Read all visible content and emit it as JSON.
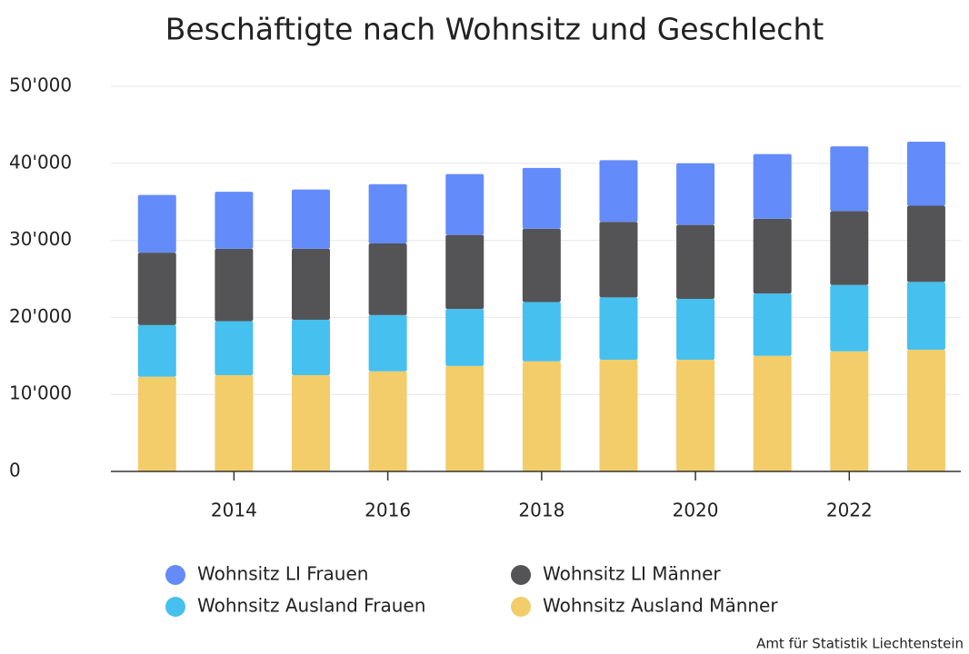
{
  "chart_data": {
    "type": "stacked_bar",
    "title": "Beschäftigte nach Wohnsitz und Geschlecht",
    "source": "Amt für Statistik Liechtenstein",
    "x": [
      2013,
      2014,
      2015,
      2016,
      2017,
      2018,
      2019,
      2020,
      2021,
      2022,
      2023
    ],
    "xlim": [
      2012.4,
      2023.45
    ],
    "xticks": [
      2014,
      2016,
      2018,
      2020,
      2022
    ],
    "ylim": [
      0,
      50000
    ],
    "yticks": [
      0,
      {
        "value": 10000,
        "label": "10'000"
      },
      {
        "value": 20000,
        "label": "20'000"
      },
      {
        "value": 30000,
        "label": "30'000"
      },
      {
        "value": 40000,
        "label": "40'000"
      },
      {
        "value": 50000,
        "label": "50'000"
      }
    ],
    "grid": true,
    "series": [
      {
        "name": "Wohnsitz LI Frauen",
        "color": "#648bfa",
        "values": [
          7500,
          7400,
          7700,
          7700,
          7900,
          7900,
          8000,
          8000,
          8400,
          8400,
          8300
        ]
      },
      {
        "name": "Wohnsitz LI Männer",
        "color": "#545457",
        "values": [
          9400,
          9400,
          9200,
          9300,
          9600,
          9500,
          9800,
          9600,
          9700,
          9600,
          9900
        ]
      },
      {
        "name": "Wohnsitz Ausland Frauen",
        "color": "#46c0ef",
        "values": [
          6700,
          7000,
          7200,
          7300,
          7400,
          7700,
          8100,
          7900,
          8100,
          8600,
          8800
        ]
      },
      {
        "name": "Wohnsitz Ausland Männer",
        "color": "#f2cd6a",
        "values": [
          12300,
          12500,
          12500,
          13000,
          13700,
          14300,
          14500,
          14500,
          15000,
          15600,
          15800
        ]
      }
    ]
  }
}
